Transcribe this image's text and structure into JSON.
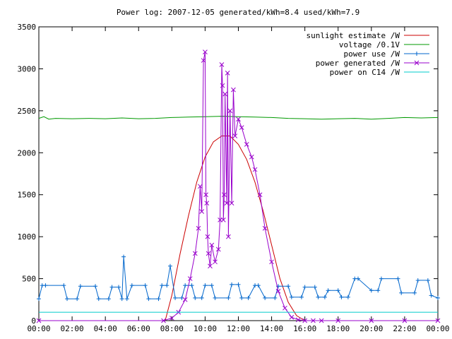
{
  "chart_data": {
    "type": "line",
    "title": "Power log: 2007-12-05 generated/kWh=8.4 used/kWh=7.9",
    "xlabel": "",
    "ylabel": "",
    "xlim": [
      "00:00",
      "24:00"
    ],
    "ylim": [
      0,
      3500
    ],
    "x_ticks": [
      "00:00",
      "02:00",
      "04:00",
      "06:00",
      "08:00",
      "10:00",
      "12:00",
      "14:00",
      "16:00",
      "18:00",
      "20:00",
      "22:00",
      "00:00"
    ],
    "y_ticks": [
      0,
      500,
      1000,
      1500,
      2000,
      2500,
      3000,
      3500
    ],
    "grid": false,
    "legend_position": "top-right",
    "series": [
      {
        "name": "sunlight estimate /W",
        "color": "#cc0000",
        "marker": "none",
        "x": [
          7.6,
          8.0,
          8.5,
          9.0,
          9.5,
          10.0,
          10.5,
          11.0,
          11.5,
          12.0,
          12.5,
          13.0,
          13.5,
          14.0,
          14.5,
          15.0,
          15.5,
          16.0
        ],
        "y": [
          0,
          300,
          800,
          1250,
          1650,
          1950,
          2130,
          2200,
          2200,
          2100,
          1920,
          1650,
          1300,
          900,
          500,
          220,
          60,
          0
        ]
      },
      {
        "name": "voltage /0.1V",
        "color": "#009900",
        "marker": "none",
        "x": [
          0,
          0.3,
          0.6,
          1,
          2,
          3,
          4,
          5,
          6,
          7,
          8,
          9,
          10,
          11,
          12,
          13,
          14,
          15,
          16,
          17,
          18,
          19,
          20,
          21,
          22,
          23,
          24
        ],
        "y": [
          2410,
          2430,
          2400,
          2410,
          2405,
          2410,
          2405,
          2415,
          2405,
          2410,
          2420,
          2425,
          2430,
          2435,
          2430,
          2425,
          2420,
          2410,
          2405,
          2400,
          2405,
          2410,
          2400,
          2410,
          2420,
          2415,
          2420
        ]
      },
      {
        "name": "power use /W",
        "color": "#0066cc",
        "marker": "plus",
        "x": [
          0,
          0.2,
          0.4,
          1.5,
          1.7,
          2.3,
          2.5,
          3.4,
          3.6,
          4.2,
          4.4,
          4.8,
          5.0,
          5.1,
          5.3,
          5.6,
          6.4,
          6.6,
          7.2,
          7.4,
          7.7,
          7.9,
          8.2,
          8.6,
          8.8,
          9.2,
          9.4,
          9.8,
          10.0,
          10.4,
          10.6,
          11.4,
          11.6,
          12.0,
          12.2,
          12.6,
          13.0,
          13.2,
          13.6,
          14.2,
          14.4,
          15.0,
          15.2,
          15.8,
          16.0,
          16.6,
          16.8,
          17.2,
          17.4,
          18.0,
          18.2,
          18.6,
          19.0,
          19.2,
          20.0,
          20.4,
          20.6,
          21.6,
          21.8,
          22.6,
          22.8,
          23.4,
          23.6,
          24.0
        ],
        "y": [
          260,
          420,
          420,
          420,
          260,
          260,
          410,
          410,
          260,
          260,
          400,
          400,
          260,
          760,
          260,
          420,
          420,
          260,
          260,
          420,
          420,
          650,
          270,
          270,
          420,
          420,
          270,
          270,
          420,
          420,
          270,
          270,
          430,
          430,
          270,
          270,
          420,
          420,
          270,
          270,
          410,
          410,
          280,
          280,
          400,
          400,
          280,
          280,
          360,
          360,
          280,
          280,
          500,
          500,
          360,
          360,
          500,
          500,
          330,
          330,
          480,
          480,
          300,
          270
        ]
      },
      {
        "name": "power generated /W",
        "color": "#9900cc",
        "marker": "x",
        "x": [
          0,
          7.5,
          8.0,
          8.4,
          8.8,
          9.1,
          9.4,
          9.6,
          9.7,
          9.8,
          9.9,
          10.0,
          10.05,
          10.1,
          10.15,
          10.2,
          10.3,
          10.4,
          10.6,
          10.8,
          10.9,
          11.0,
          11.05,
          11.1,
          11.15,
          11.2,
          11.3,
          11.35,
          11.4,
          11.5,
          11.6,
          11.7,
          11.8,
          12.0,
          12.2,
          12.5,
          12.8,
          13.0,
          13.3,
          13.6,
          14.0,
          14.4,
          14.8,
          15.2,
          15.6,
          16.0,
          16.5,
          17.0,
          18.0,
          20.0,
          22.0,
          24.0
        ],
        "y": [
          0,
          0,
          30,
          100,
          250,
          500,
          800,
          1100,
          1600,
          1300,
          3100,
          3200,
          1500,
          1400,
          1000,
          800,
          650,
          900,
          700,
          850,
          1200,
          3050,
          2800,
          1200,
          1500,
          2700,
          1400,
          2950,
          1000,
          2500,
          1400,
          2750,
          2200,
          2400,
          2300,
          2100,
          1950,
          1800,
          1500,
          1100,
          700,
          350,
          150,
          40,
          10,
          0,
          0,
          0,
          0,
          0,
          0,
          0
        ]
      },
      {
        "name": "power on C14 /W",
        "color": "#00cccc",
        "marker": "none",
        "x": [
          0,
          4,
          8,
          12,
          16,
          20,
          24
        ],
        "y": [
          100,
          100,
          100,
          100,
          100,
          100,
          100
        ]
      }
    ]
  }
}
